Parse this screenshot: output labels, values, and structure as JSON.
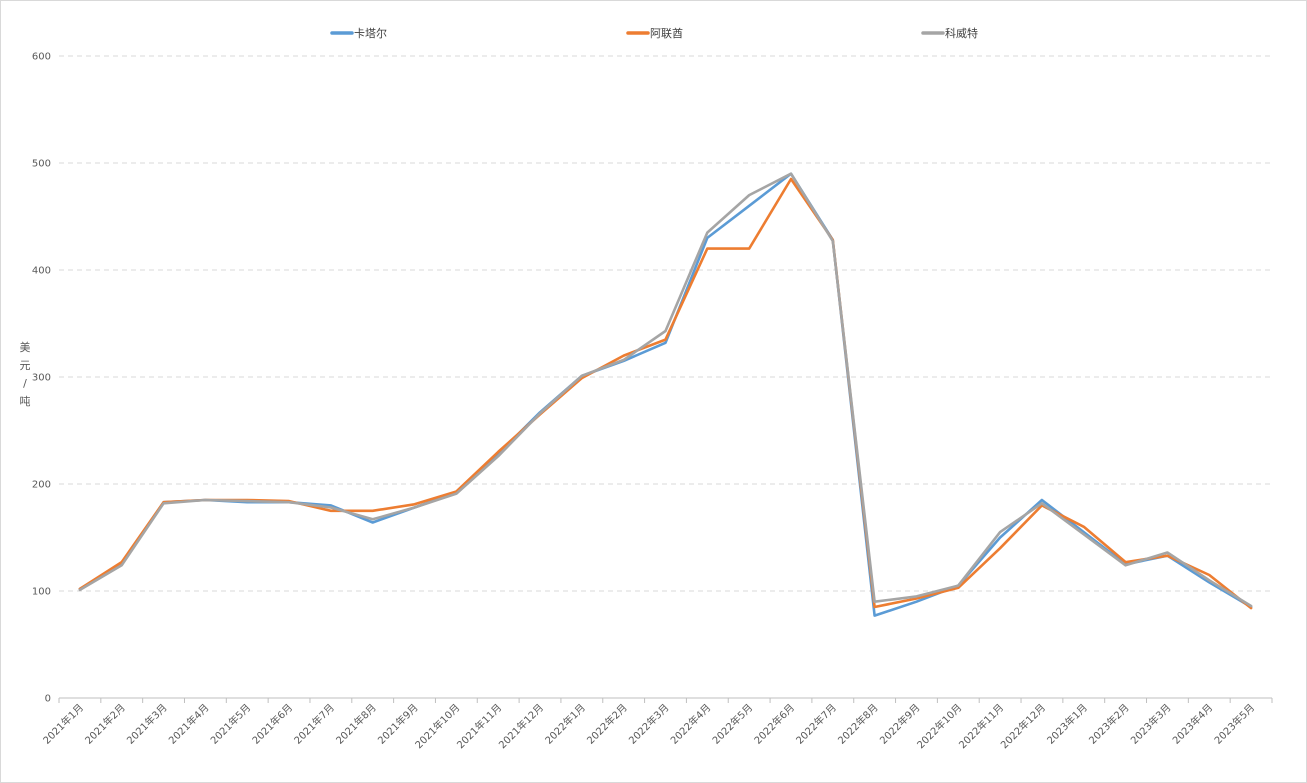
{
  "chart_data": {
    "type": "line",
    "title": "",
    "xlabel": "",
    "ylabel": "美元/吨",
    "ylim": [
      0,
      600
    ],
    "yticks": [
      0,
      100,
      200,
      300,
      400,
      500,
      600
    ],
    "grid": true,
    "legend_position": "top",
    "categories": [
      "2021年1月",
      "2021年2月",
      "2021年3月",
      "2021年4月",
      "2021年5月",
      "2021年6月",
      "2021年7月",
      "2021年8月",
      "2021年9月",
      "2021年10月",
      "2021年11月",
      "2021年12月",
      "2022年1月",
      "2022年2月",
      "2022年3月",
      "2022年4月",
      "2022年5月",
      "2022年6月",
      "2022年7月",
      "2022年8月",
      "2022年9月",
      "2022年10月",
      "2022年11月",
      "2022年12月",
      "2023年1月",
      "2023年2月",
      "2023年3月",
      "2023年4月",
      "2023年5月"
    ],
    "series": [
      {
        "name": "卡塔尔",
        "color": "#5b9bd5",
        "values": [
          102,
          125,
          183,
          185,
          183,
          183,
          180,
          164,
          178,
          192,
          228,
          267,
          301,
          315,
          332,
          430,
          460,
          490,
          428,
          77,
          90,
          105,
          150,
          185,
          155,
          125,
          133,
          108,
          85
        ]
      },
      {
        "name": "阿联酋",
        "color": "#ed7d31",
        "values": [
          102,
          127,
          183,
          185,
          185,
          184,
          175,
          175,
          181,
          193,
          230,
          265,
          299,
          320,
          335,
          420,
          420,
          485,
          428,
          85,
          93,
          103,
          140,
          180,
          160,
          127,
          133,
          115,
          84
        ]
      },
      {
        "name": "科威特",
        "color": "#a5a5a5",
        "values": [
          101,
          124,
          182,
          185,
          184,
          183,
          178,
          167,
          178,
          191,
          226,
          266,
          301,
          316,
          343,
          435,
          470,
          490,
          427,
          90,
          95,
          105,
          155,
          182,
          153,
          124,
          136,
          110,
          86
        ]
      }
    ]
  }
}
